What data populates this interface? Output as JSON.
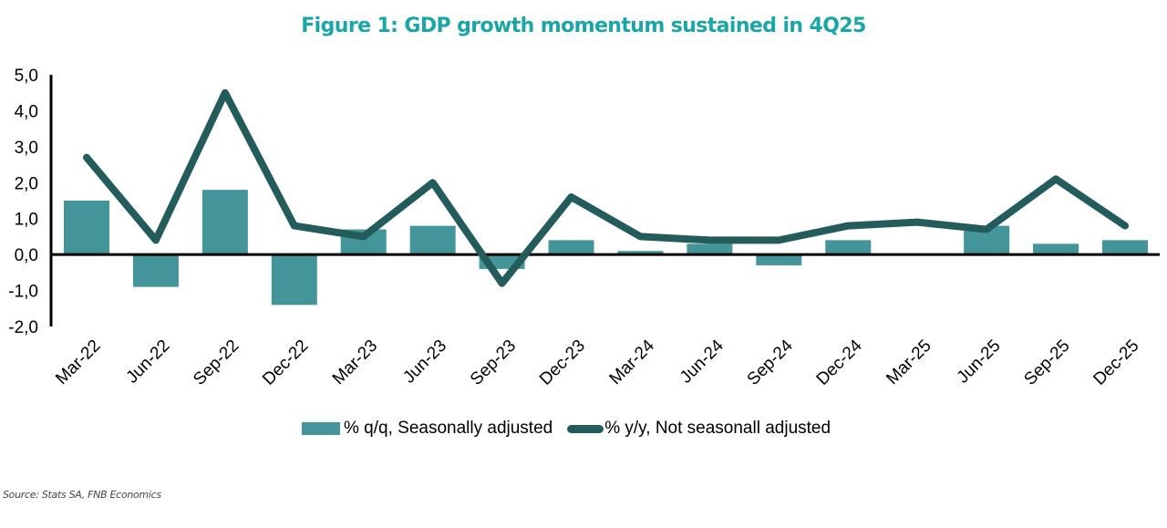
{
  "chart_data": {
    "type": "bar+line",
    "title": "Figure 1: GDP growth momentum sustained in 4Q25",
    "xlabel": "",
    "ylabel": "",
    "ylim": [
      -2.0,
      5.0
    ],
    "yticks": [
      "5,0",
      "4,0",
      "3,0",
      "2,0",
      "1,0",
      "0,0",
      "-1,0",
      "-2,0"
    ],
    "ytick_values": [
      5,
      4,
      3,
      2,
      1,
      0,
      -1,
      -2
    ],
    "grid": false,
    "legend_position": "bottom",
    "categories": [
      "Mar-22",
      "Jun-22",
      "Sep-22",
      "Dec-22",
      "Mar-23",
      "Jun-23",
      "Sep-23",
      "Dec-23",
      "Mar-24",
      "Jun-24",
      "Sep-24",
      "Dec-24",
      "Mar-25",
      "Jun-25",
      "Sep-25",
      "Dec-25"
    ],
    "series": [
      {
        "name": "% q/q, Seasonally adjusted",
        "type": "bar",
        "color": "#44959a",
        "values": [
          1.5,
          -0.9,
          1.8,
          -1.4,
          0.7,
          0.8,
          -0.4,
          0.4,
          0.1,
          0.3,
          -0.3,
          0.4,
          0.0,
          0.8,
          0.3,
          0.4
        ]
      },
      {
        "name": "% y/y, Not seasonall adjusted",
        "type": "line",
        "color": "#245b5b",
        "values": [
          2.7,
          0.4,
          4.5,
          0.8,
          0.5,
          2.0,
          -0.8,
          1.6,
          0.5,
          0.4,
          0.4,
          0.8,
          0.9,
          0.7,
          2.1,
          0.8
        ]
      }
    ],
    "source": "Source: Stats SA, FNB Economics"
  }
}
